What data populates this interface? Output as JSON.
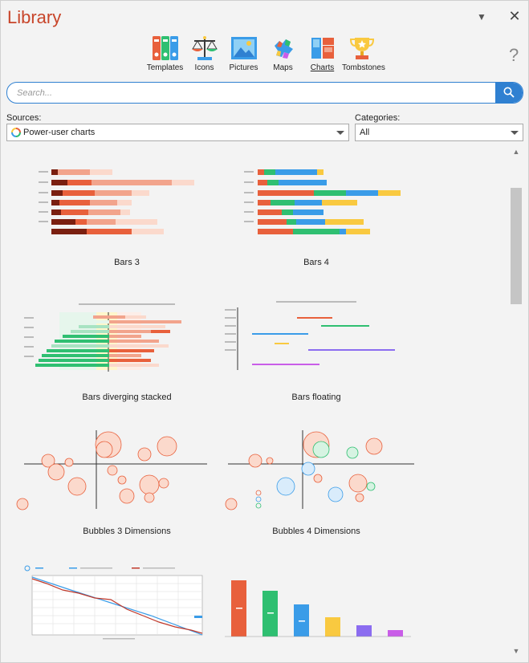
{
  "window": {
    "title": "Library"
  },
  "tabs": [
    {
      "label": "Templates",
      "icon": "templates-icon"
    },
    {
      "label": "Icons",
      "icon": "scales-icon"
    },
    {
      "label": "Pictures",
      "icon": "picture-icon"
    },
    {
      "label": "Maps",
      "icon": "map-icon"
    },
    {
      "label": "Charts",
      "icon": "chart-icon",
      "active": true
    },
    {
      "label": "Tombstones",
      "icon": "trophy-icon"
    }
  ],
  "help_symbol": "?",
  "search": {
    "placeholder": "Search..."
  },
  "sources": {
    "label": "Sources:",
    "value": "Power-user charts"
  },
  "categories": {
    "label": "Categories:",
    "value": "All"
  },
  "gallery": [
    {
      "caption": "Bars 3"
    },
    {
      "caption": "Bars 4"
    },
    {
      "caption": "Bars diverging stacked"
    },
    {
      "caption": "Bars floating"
    },
    {
      "caption": "Bubbles 3 Dimensions"
    },
    {
      "caption": "Bubbles 4 Dimensions"
    },
    {
      "caption": ""
    },
    {
      "caption": ""
    }
  ],
  "colors": {
    "accent": "#2f80d1",
    "title": "#c8452a",
    "palette": [
      "#e8603c",
      "#2fbf71",
      "#3a9ce8",
      "#f9c940",
      "#8b6cf0",
      "#c95de8"
    ],
    "reds": [
      "#7a1f10",
      "#e8603c",
      "#f2a48c",
      "#fbd9cc"
    ]
  }
}
